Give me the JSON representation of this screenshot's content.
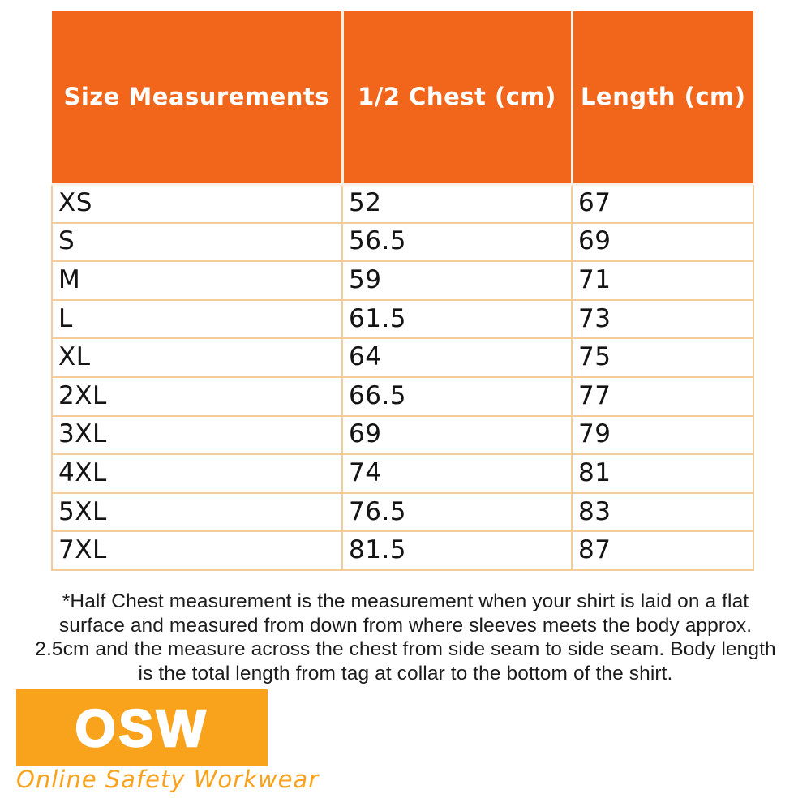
{
  "chart_data": {
    "type": "table",
    "title": "Size Measurements",
    "columns": [
      "Size Measurements",
      "1/2 Chest (cm)",
      "Length (cm)"
    ],
    "rows": [
      [
        "XS",
        "52",
        "67"
      ],
      [
        "S",
        "56.5",
        "69"
      ],
      [
        "M",
        "59",
        "71"
      ],
      [
        "L",
        "61.5",
        "73"
      ],
      [
        "XL",
        "64",
        "75"
      ],
      [
        "2XL",
        "66.5",
        "77"
      ],
      [
        "3XL",
        "69",
        "79"
      ],
      [
        "4XL",
        "74",
        "81"
      ],
      [
        "5XL",
        "76.5",
        "83"
      ],
      [
        "7XL",
        "81.5",
        "87"
      ]
    ],
    "layout": {
      "header_position": "top",
      "grid": true
    }
  },
  "footnote": {
    "lines": [
      "*Half Chest measurement is the measurement when your shirt is laid on a flat",
      "surface and measured from down from where sleeves meets the body approx.",
      "2.5cm and the measure across the chest from side seam to side seam. Body length",
      "is the total length from tag at collar to the bottom of the shirt."
    ]
  },
  "logo": {
    "acronym": "OSW",
    "tagline": "Online Safety Workwear"
  },
  "colors": {
    "header_bg": "#F2661C",
    "header_text": "#FFFFFF",
    "cell_border": "#F3CC9C",
    "header_divider": "#FAF1E6",
    "body_text": "#141414",
    "footnote_text": "#1C1C1C",
    "logo_bg": "#F9A21C",
    "logo_text": "#FFFFFF",
    "tagline_color": "#F9A21C"
  }
}
